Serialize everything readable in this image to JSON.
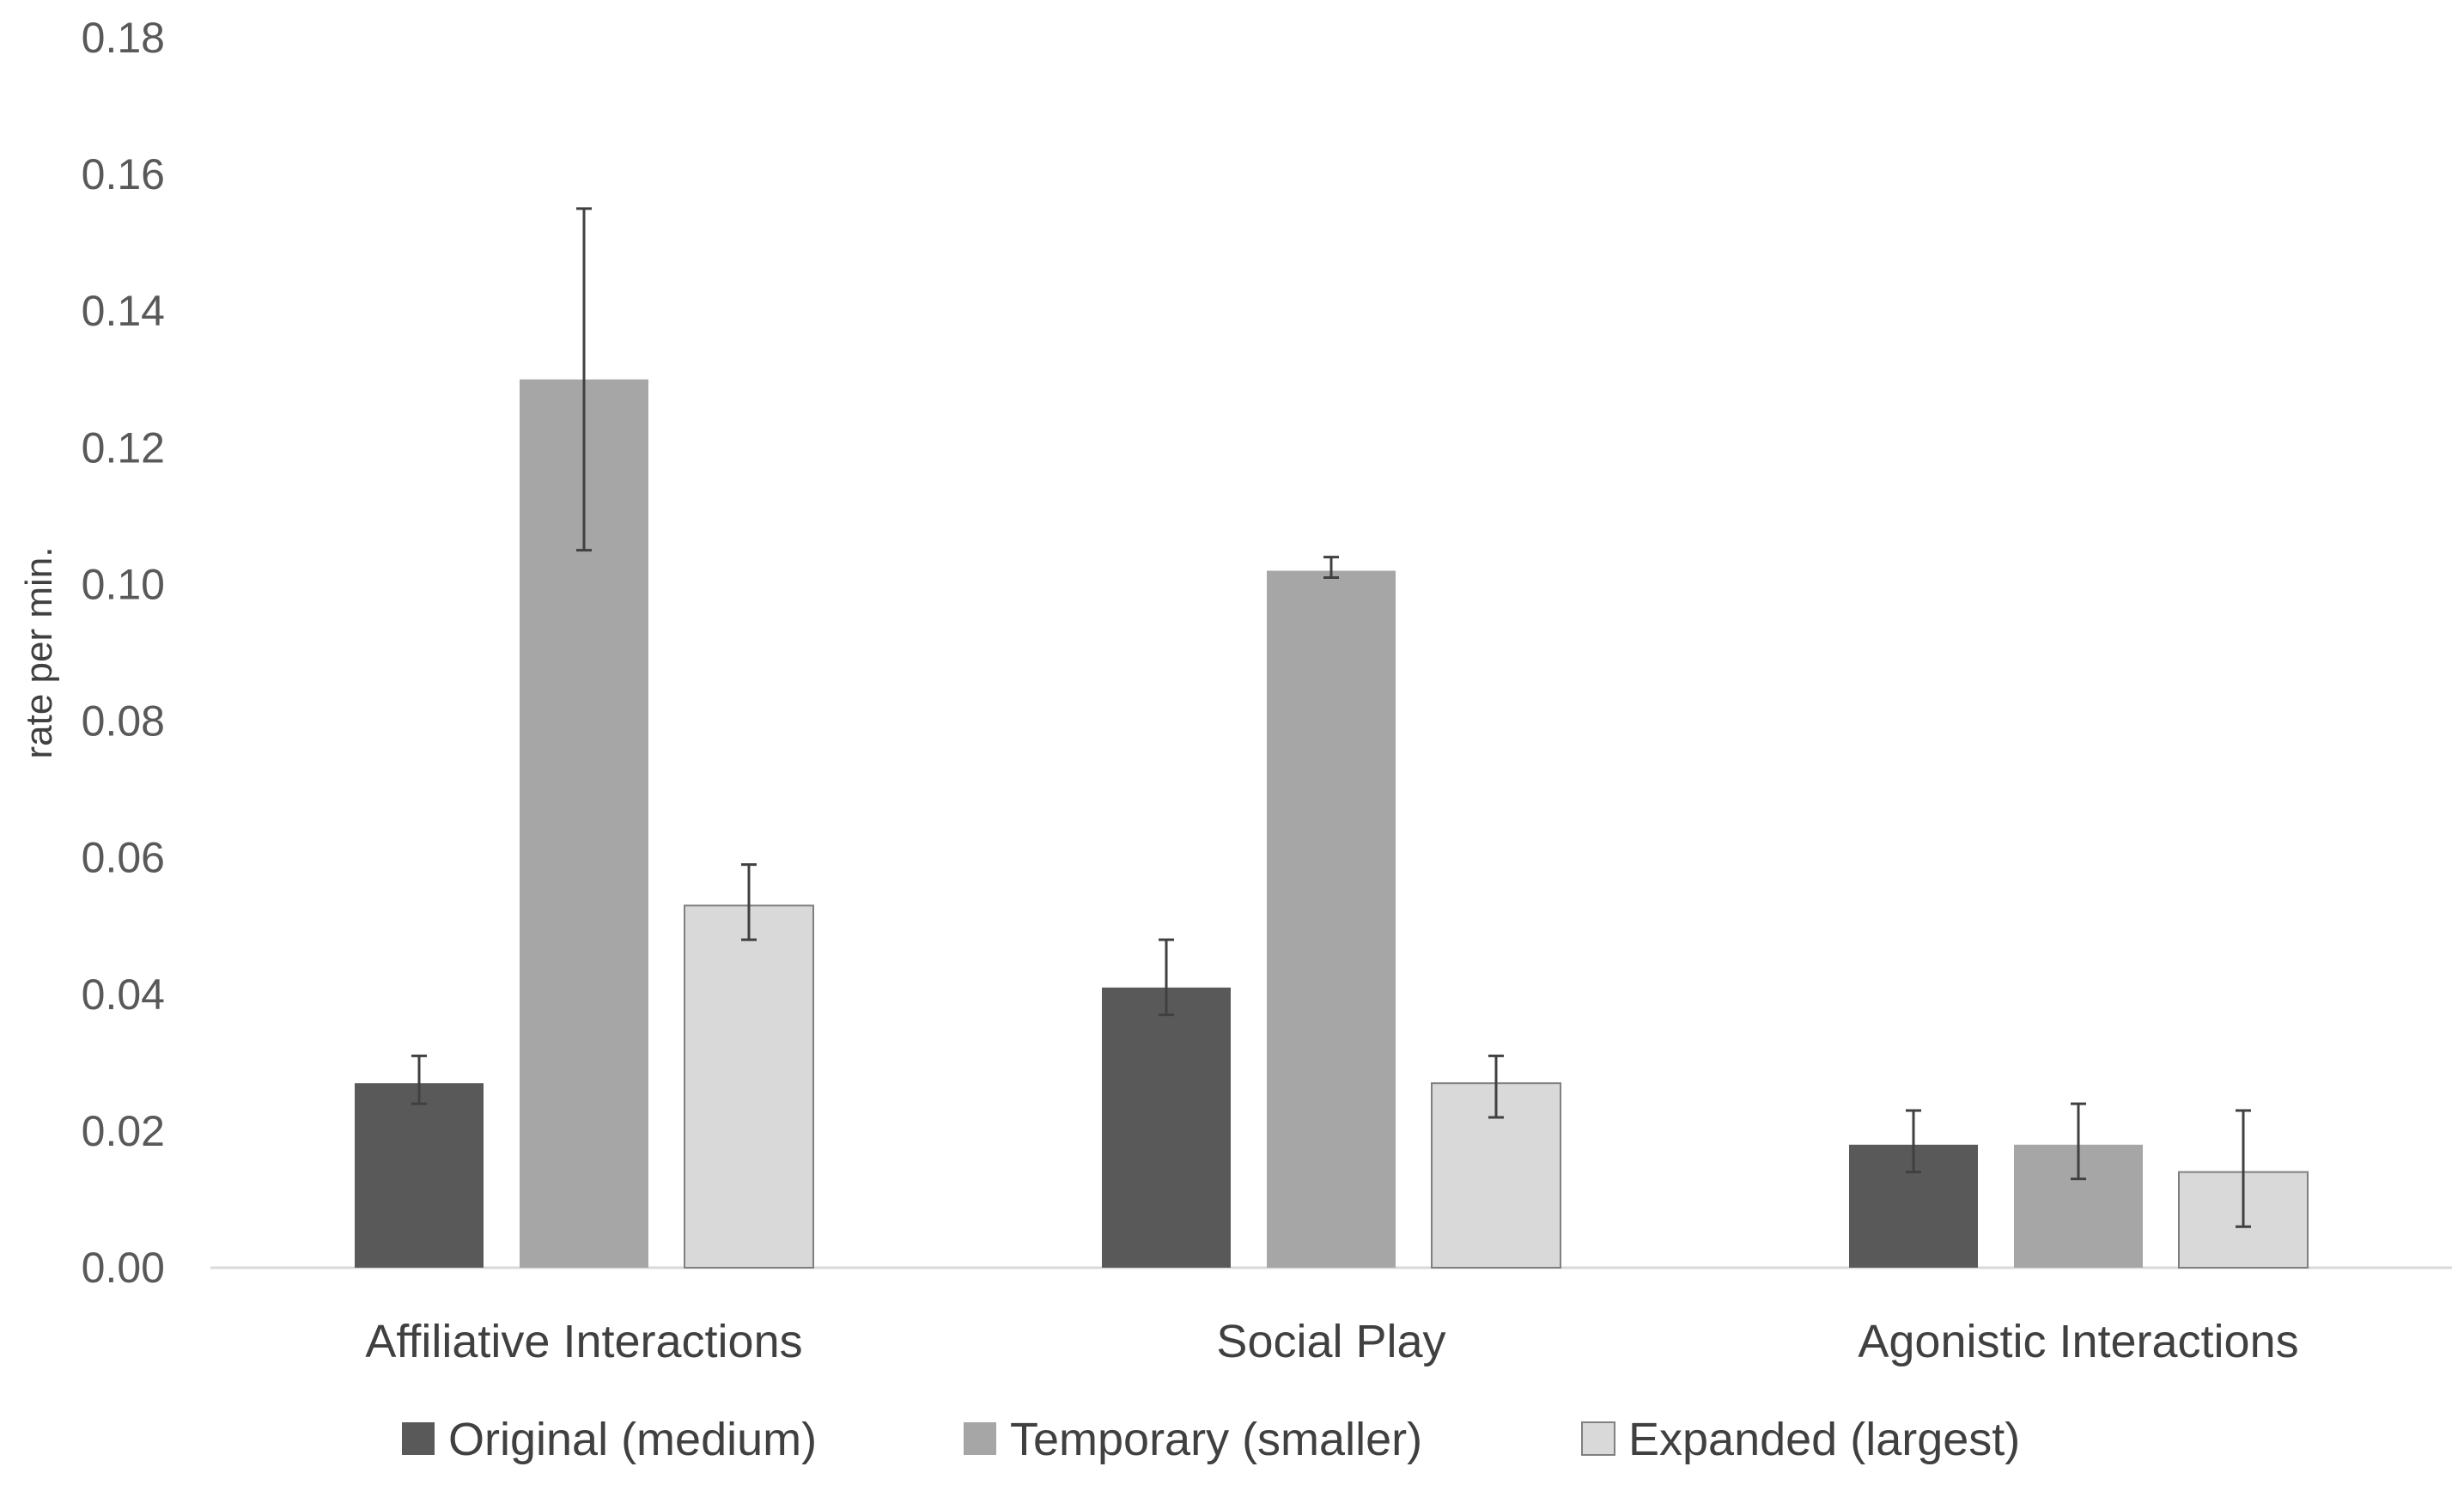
{
  "chart_data": {
    "type": "bar",
    "title": "",
    "xlabel": "",
    "ylabel": "rate per min.",
    "ylim": [
      0,
      0.18
    ],
    "yticks": [
      "0.00",
      "0.02",
      "0.04",
      "0.06",
      "0.08",
      "0.10",
      "0.12",
      "0.14",
      "0.16",
      "0.18"
    ],
    "ytick_values": [
      0,
      0.02,
      0.04,
      0.06,
      0.08,
      0.1,
      0.12,
      0.14,
      0.16,
      0.18
    ],
    "grid": false,
    "legend_position": "bottom",
    "categories": [
      "Affiliative Interactions",
      "Social Play",
      "Agonistic Interactions"
    ],
    "series": [
      {
        "name": "Original (medium)",
        "color": "#595959",
        "values": [
          0.027,
          0.041,
          0.018
        ],
        "err_low": [
          0.024,
          0.037,
          0.014
        ],
        "err_high": [
          0.031,
          0.048,
          0.023
        ]
      },
      {
        "name": "Temporary (smaller)",
        "color": "#a6a6a6",
        "values": [
          0.13,
          0.102,
          0.018
        ],
        "err_low": [
          0.105,
          0.101,
          0.013
        ],
        "err_high": [
          0.155,
          0.104,
          0.024
        ]
      },
      {
        "name": "Expanded (largest)",
        "color": "#d9d9d9",
        "values": [
          0.053,
          0.027,
          0.014
        ],
        "err_low": [
          0.048,
          0.022,
          0.006
        ],
        "err_high": [
          0.059,
          0.031,
          0.023
        ]
      }
    ]
  }
}
